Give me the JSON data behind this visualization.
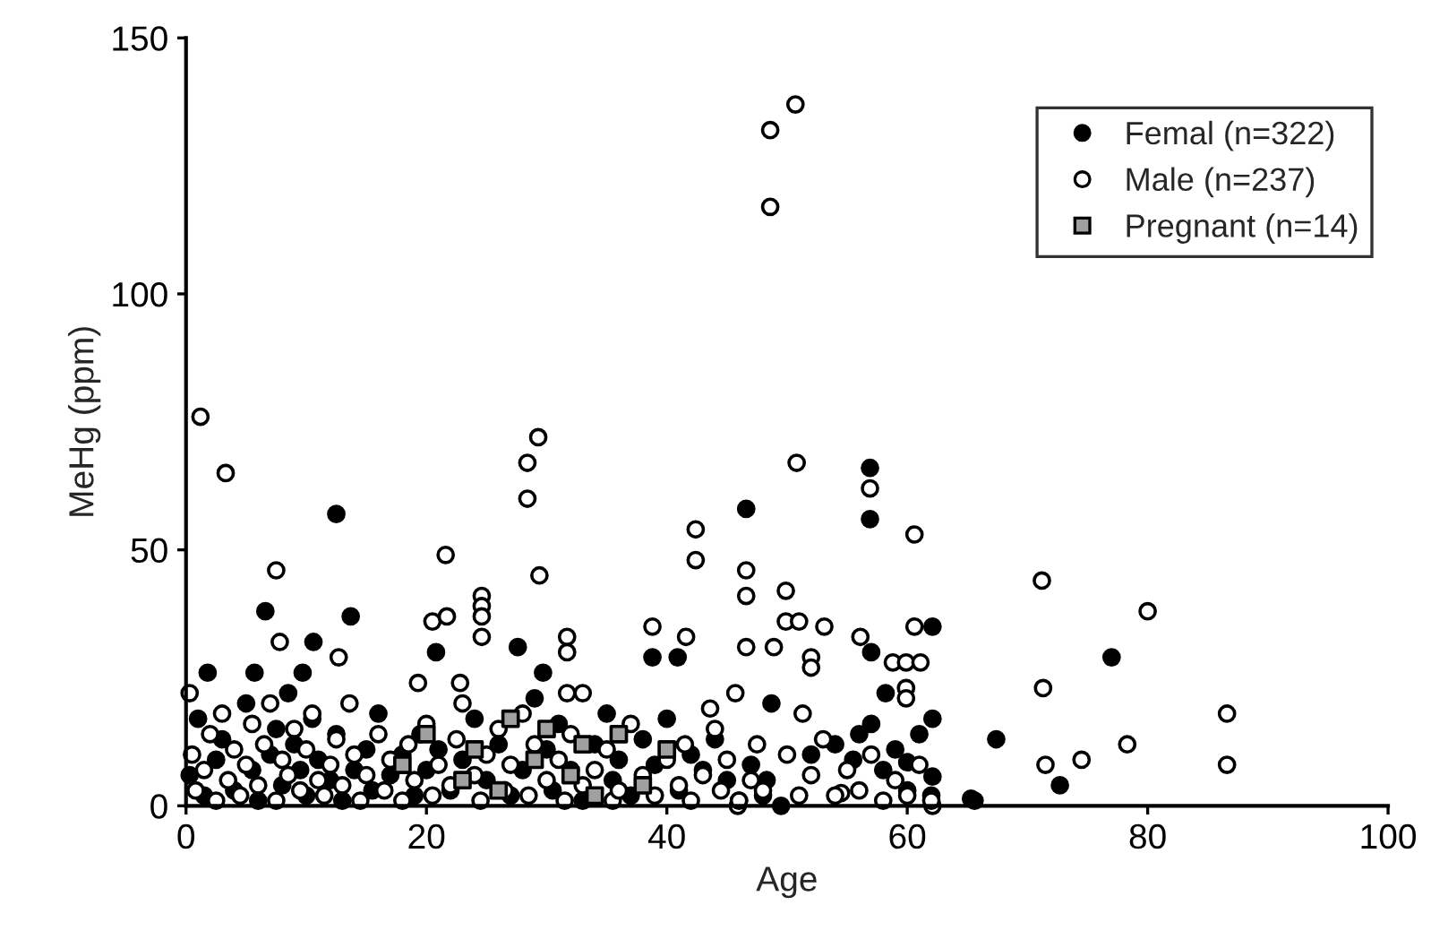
{
  "chart_data": {
    "type": "scatter",
    "xlabel": "Age",
    "ylabel": "MeHg (ppm)",
    "xlim": [
      0,
      100
    ],
    "ylim": [
      0,
      150
    ],
    "xticks": [
      0,
      20,
      40,
      60,
      80,
      100
    ],
    "yticks": [
      0,
      50,
      100,
      150
    ],
    "grid": false,
    "legend": "top right",
    "series": [
      {
        "name": "Femal (n=322)",
        "color": "#000000",
        "marker": "circle",
        "x": [
          12.5,
          6.6,
          13.7,
          10.6,
          20.8,
          27.6,
          1.8,
          5.7,
          9.7,
          29.7,
          56.9,
          56.9,
          46.6,
          38.8,
          40.9,
          62.1,
          57,
          58.2,
          67.4,
          62.1,
          60,
          65.3,
          49.5,
          48.7,
          48.3,
          62.1,
          55.5,
          77,
          72.7,
          65.6,
          0.3,
          1,
          1.5,
          2.5,
          3,
          4,
          5,
          5.5,
          6,
          7,
          7.5,
          8,
          8.5,
          9,
          9.5,
          10,
          10.5,
          11,
          12,
          12.5,
          13,
          14,
          15,
          15.5,
          16,
          17,
          18,
          19,
          19.5,
          20,
          21,
          22,
          23,
          24,
          25,
          26,
          27,
          28,
          29,
          30,
          30.5,
          31,
          32,
          33,
          34,
          35,
          35.5,
          36,
          37,
          38,
          39,
          40,
          41,
          42,
          43,
          44,
          45,
          46,
          47,
          48,
          52,
          54,
          56,
          57,
          58,
          59,
          60,
          61,
          62
        ],
        "values": [
          57,
          38,
          37,
          32,
          30,
          31,
          26,
          26,
          26,
          26,
          66,
          56,
          58,
          29,
          29,
          35,
          30,
          22,
          13,
          17,
          8.5,
          1.4,
          0,
          20,
          5,
          5.7,
          9,
          29,
          4,
          1,
          6,
          17,
          2,
          9,
          13,
          3,
          20,
          7,
          1,
          10,
          15,
          4,
          22,
          12,
          7,
          2,
          17,
          9,
          5,
          14,
          1,
          7,
          11,
          3,
          18,
          6,
          10,
          2,
          14,
          7,
          11,
          3,
          9,
          17,
          5,
          12,
          2,
          7,
          21,
          11,
          3,
          16,
          7,
          1,
          12,
          18,
          5,
          9,
          2,
          13,
          8,
          17,
          3,
          10,
          7,
          13,
          5,
          1,
          8,
          2,
          10,
          12,
          14,
          16,
          7,
          11,
          3,
          14,
          2
        ]
      },
      {
        "name": "Male (n=237)",
        "color": "#ffffff",
        "marker": "circle",
        "x": [
          48.6,
          50.7,
          48.6,
          1.2,
          3.3,
          7.5,
          21.6,
          28.4,
          29.3,
          28.4,
          29.4,
          7.8,
          12.7,
          20.5,
          21.7,
          24.6,
          24.6,
          24.6,
          24.6,
          31.7,
          31.7,
          0.3,
          13.6,
          22.8,
          19.3,
          31.7,
          33,
          50.8,
          56.9,
          60.6,
          42.4,
          42.4,
          46.6,
          46.6,
          49.9,
          49.9,
          51,
          53.1,
          38.8,
          41.6,
          46.6,
          48.9,
          52,
          52,
          56.1,
          60.6,
          58.8,
          59.9,
          61.1,
          59.9,
          59.9,
          45.7,
          43.6,
          51.3,
          54.5,
          45.9,
          62.1,
          71.2,
          80,
          71.3,
          86.6,
          86.6,
          71.5,
          74.5,
          78.3,
          0.5,
          0.8,
          1.5,
          2,
          2.5,
          3,
          3.5,
          4,
          4.5,
          5,
          5.5,
          6,
          6.5,
          7,
          7.5,
          8,
          8.5,
          9,
          9.5,
          10,
          10.5,
          11,
          11.5,
          12,
          12.5,
          13,
          14,
          14.5,
          15,
          16,
          16.5,
          17,
          18,
          18.5,
          19,
          20,
          20.5,
          21,
          22,
          22.5,
          23,
          24,
          24.5,
          25,
          26,
          26.5,
          27,
          28,
          28.5,
          29,
          30,
          31,
          31.5,
          32,
          33,
          34,
          35,
          35.5,
          36,
          37,
          38,
          39,
          40,
          41,
          41.5,
          42,
          43,
          44,
          44.5,
          45,
          46,
          47,
          47.5,
          48,
          50,
          51,
          52,
          53,
          54,
          55,
          56,
          57,
          58,
          59,
          60,
          61,
          62
        ],
        "values": [
          132,
          137,
          117,
          76,
          65,
          46,
          49,
          67,
          72,
          60,
          45,
          32,
          29,
          36,
          37,
          41,
          39,
          37,
          33,
          33,
          30,
          22,
          20,
          24,
          24,
          22,
          22,
          67,
          62,
          53,
          54,
          48,
          46,
          41,
          42,
          36,
          36,
          35,
          35,
          33,
          31,
          31,
          29,
          27,
          33,
          35,
          28,
          28,
          28,
          23,
          21,
          22,
          19,
          18,
          2.5,
          0,
          0,
          44,
          38,
          23,
          18,
          8,
          8,
          9,
          12,
          10,
          3,
          7,
          14,
          1,
          18,
          5,
          11,
          2,
          8,
          16,
          4,
          12,
          20,
          1,
          9,
          6,
          15,
          3,
          11,
          18,
          5,
          2,
          8,
          13,
          4,
          10,
          1,
          6,
          14,
          3,
          9,
          1,
          12,
          5,
          16,
          2,
          8,
          4,
          13,
          20,
          6,
          1,
          10,
          15,
          3,
          8,
          18,
          2,
          12,
          5,
          9,
          1,
          14,
          4,
          7,
          11,
          1,
          3,
          16,
          6,
          2,
          9,
          4,
          12,
          1,
          6,
          15,
          3,
          9,
          1,
          5,
          12,
          3,
          10,
          2,
          6,
          13,
          2,
          7,
          3,
          10,
          1,
          5,
          2,
          8,
          1
        ]
      },
      {
        "name": "Pregnant (n=14)",
        "color": "#a0a0a0",
        "marker": "square",
        "x": [
          18,
          20,
          23,
          24,
          26,
          27,
          29,
          30,
          32,
          33,
          34,
          36,
          38,
          40
        ],
        "values": [
          8,
          14,
          5,
          11,
          3,
          17,
          9,
          15,
          6,
          12,
          2,
          14,
          4,
          11
        ]
      }
    ]
  }
}
